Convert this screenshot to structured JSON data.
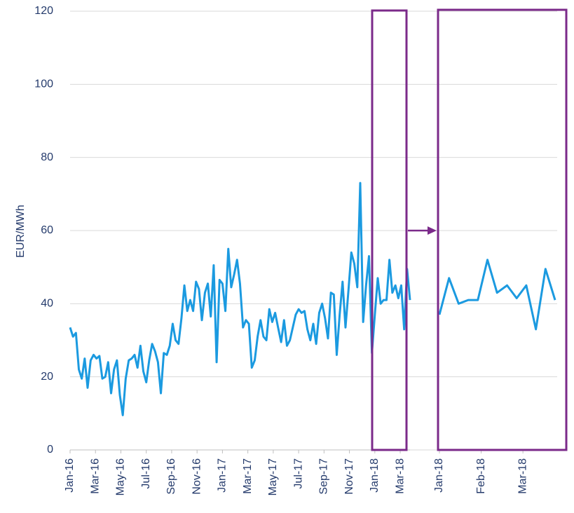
{
  "chart_data": [
    {
      "type": "line",
      "y_label": "EUR/MWh",
      "ylim": [
        0,
        120
      ],
      "yticks": [
        0,
        20,
        40,
        60,
        80,
        100,
        120
      ],
      "grid": true,
      "xlim": [
        0,
        26.77
      ],
      "xticks": [
        {
          "value": 0,
          "label": "Jan-16"
        },
        {
          "value": 2,
          "label": "Mar-16"
        },
        {
          "value": 4,
          "label": "May-16"
        },
        {
          "value": 6,
          "label": "Jul-16"
        },
        {
          "value": 8,
          "label": "Sep-16"
        },
        {
          "value": 10,
          "label": "Nov-16"
        },
        {
          "value": 12,
          "label": "Jan-17"
        },
        {
          "value": 14,
          "label": "Mar-17"
        },
        {
          "value": 16,
          "label": "May-17"
        },
        {
          "value": 18,
          "label": "Jul-17"
        },
        {
          "value": 20,
          "label": "Sep-17"
        },
        {
          "value": 22,
          "label": "Nov-17"
        },
        {
          "value": 24,
          "label": "Jan-18"
        },
        {
          "value": 26,
          "label": "Mar-18"
        }
      ],
      "x": [
        0,
        0.23,
        0.46,
        0.69,
        0.92,
        1.15,
        1.38,
        1.62,
        1.85,
        2.08,
        2.31,
        2.54,
        2.77,
        3,
        3.23,
        3.46,
        3.69,
        3.92,
        4.15,
        4.38,
        4.62,
        4.85,
        5.08,
        5.31,
        5.54,
        5.77,
        6,
        6.23,
        6.46,
        6.69,
        6.92,
        7.15,
        7.38,
        7.62,
        7.85,
        8.08,
        8.31,
        8.54,
        8.77,
        9,
        9.23,
        9.46,
        9.69,
        9.92,
        10.15,
        10.38,
        10.62,
        10.85,
        11.08,
        11.31,
        11.54,
        11.77,
        12,
        12.23,
        12.46,
        12.69,
        12.92,
        13.15,
        13.38,
        13.62,
        13.85,
        14.08,
        14.31,
        14.54,
        14.77,
        15,
        15.23,
        15.46,
        15.69,
        15.92,
        16.15,
        16.38,
        16.62,
        16.85,
        17.08,
        17.31,
        17.54,
        17.77,
        18,
        18.23,
        18.46,
        18.69,
        18.92,
        19.15,
        19.38,
        19.62,
        19.85,
        20.08,
        20.31,
        20.54,
        20.77,
        21,
        21.23,
        21.46,
        21.69,
        21.92,
        22.15,
        22.38,
        22.62,
        22.85,
        23.08,
        23.31,
        23.54,
        23.77,
        24,
        24.23,
        24.46,
        24.69,
        24.92,
        25.15,
        25.38,
        25.62,
        25.85,
        26.08,
        26.31,
        26.54,
        26.77
      ],
      "series": [
        {
          "color": "#1b9ae0",
          "values": [
            33.5,
            31,
            32,
            22,
            19.5,
            25,
            17,
            24.5,
            26,
            25,
            25.7,
            19.5,
            20,
            24,
            15.5,
            22,
            24.5,
            15,
            9.5,
            19.5,
            24.5,
            25,
            26,
            22.5,
            28.5,
            21.5,
            18.5,
            24.5,
            29,
            27,
            24,
            15.5,
            26.5,
            26,
            28.5,
            34.5,
            30,
            29,
            36,
            45,
            38,
            41,
            38,
            46,
            44,
            35.5,
            43,
            45.5,
            36.5,
            50.5,
            24,
            46.5,
            45.5,
            38,
            55,
            44.5,
            48,
            52,
            45.5,
            33.5,
            35.5,
            34.5,
            22.5,
            24.5,
            31,
            35.5,
            31,
            30,
            38.5,
            35,
            37.5,
            33.5,
            29.5,
            35.5,
            28.5,
            30,
            33.5,
            37,
            38.5,
            37.5,
            38,
            33,
            30,
            34.5,
            29,
            37.5,
            40,
            36,
            30.5,
            43,
            42.5,
            26,
            37,
            46,
            33.5,
            43.5,
            54,
            51,
            44.5,
            73,
            35,
            45,
            53,
            26.5,
            37,
            47,
            40,
            41,
            41,
            52,
            43,
            45,
            41.5,
            45,
            33,
            49.5,
            41
          ]
        }
      ]
    },
    {
      "type": "line",
      "ylim": [
        0,
        120
      ],
      "yticks": [
        0,
        20,
        40,
        60,
        80,
        100,
        120
      ],
      "grid": true,
      "xlim": [
        24,
        26.77
      ],
      "xticks": [
        {
          "value": 24,
          "label": "Jan-18"
        },
        {
          "value": 25,
          "label": "Feb-18"
        },
        {
          "value": 26,
          "label": "Mar-18"
        }
      ],
      "x": [
        24,
        24.23,
        24.46,
        24.69,
        24.92,
        25.15,
        25.38,
        25.62,
        25.85,
        26.08,
        26.31,
        26.54,
        26.77
      ],
      "series": [
        {
          "color": "#1b9ae0",
          "values": [
            37,
            47,
            40,
            41,
            41,
            52,
            43,
            45,
            41.5,
            45,
            33,
            49.5,
            41
          ]
        }
      ]
    }
  ]
}
